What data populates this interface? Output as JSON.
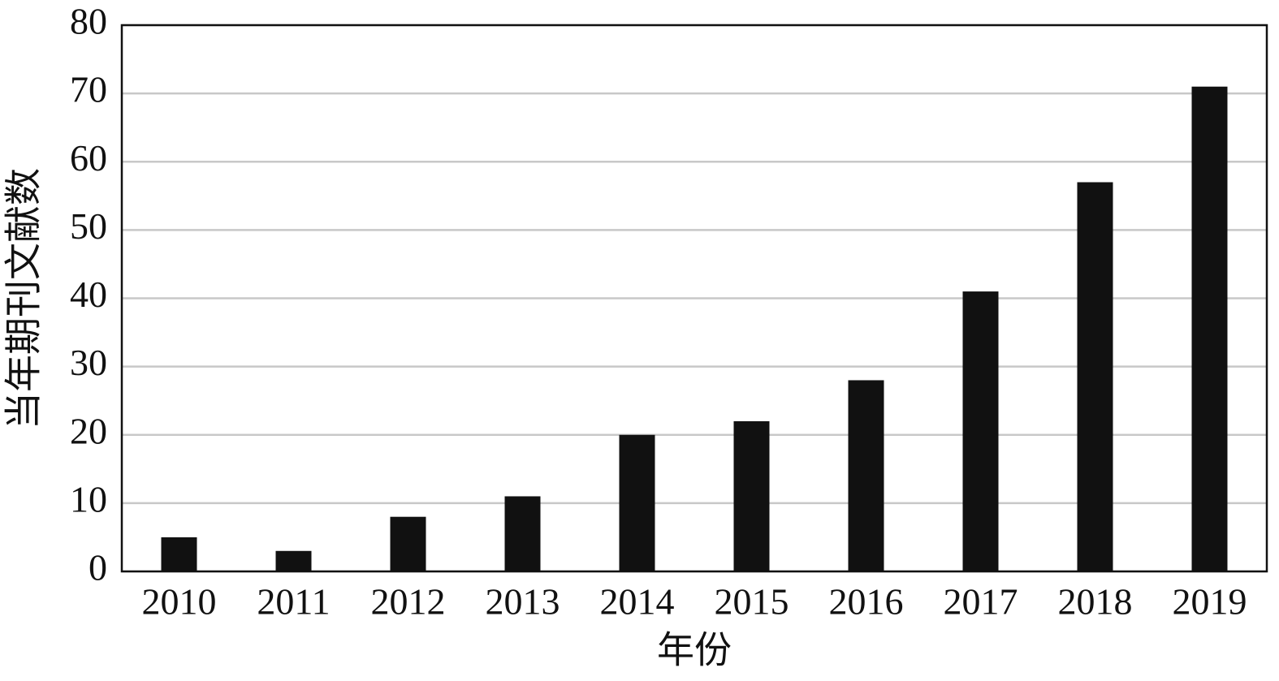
{
  "chart_data": {
    "type": "bar",
    "x_label": "年份",
    "y_label": "当年期刊文献数",
    "categories": [
      "2010",
      "2011",
      "2012",
      "2013",
      "2014",
      "2015",
      "2016",
      "2017",
      "2018",
      "2019"
    ],
    "values": [
      5,
      3,
      8,
      11,
      20,
      22,
      28,
      41,
      57,
      71
    ],
    "color": "#111111",
    "ylim": [
      0,
      80
    ],
    "yticks": [
      0,
      10,
      20,
      30,
      40,
      50,
      60,
      70,
      80
    ],
    "grid": true
  }
}
